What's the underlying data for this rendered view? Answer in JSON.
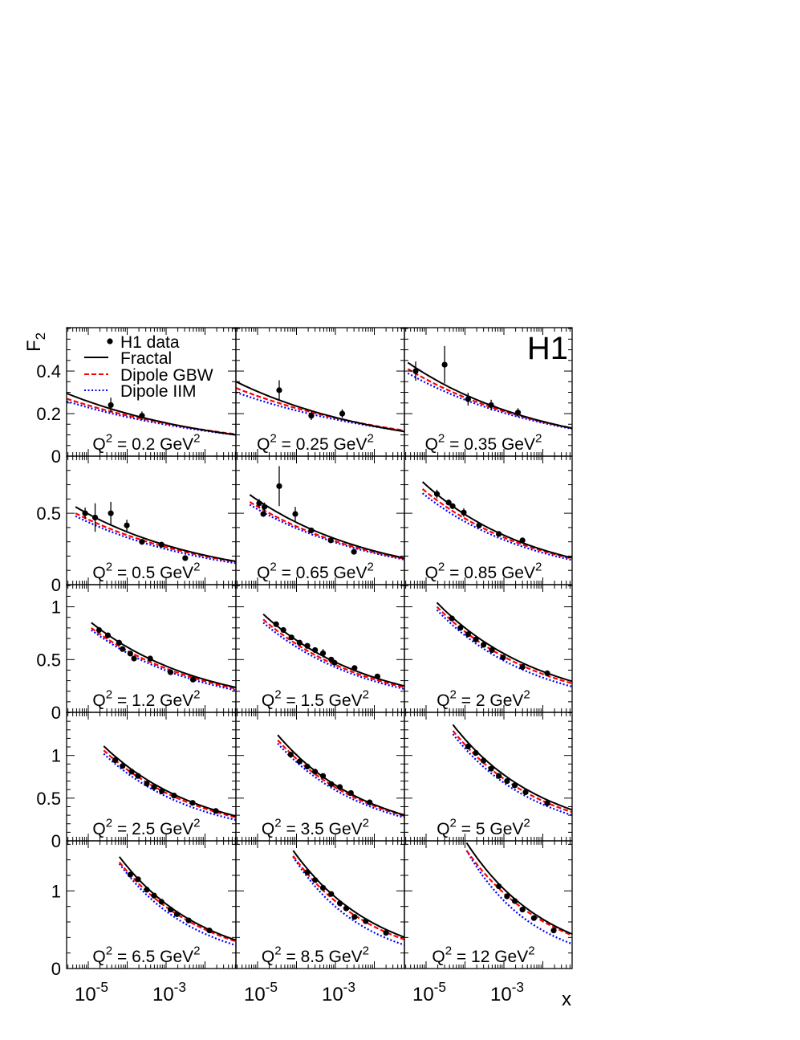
{
  "chart_data": {
    "type": "scatter",
    "experiment_label": "H1",
    "xlabel": "x",
    "ylabel": "F_2",
    "xscale": "log",
    "xlim": [
      2.8e-06,
      0.062
    ],
    "x_tick_labels": [
      "10^-5",
      "10^-3"
    ],
    "grid": false,
    "legend": {
      "placement": "top-left of first panel",
      "entries": [
        {
          "name": "H1 data",
          "style": "marker",
          "color": "#000000"
        },
        {
          "name": "Fractal",
          "style": "solid",
          "color": "#000000"
        },
        {
          "name": "Dipole GBW",
          "style": "dashed",
          "color": "#ff0000"
        },
        {
          "name": "Dipole IIM",
          "style": "dotted",
          "color": "#0000ff"
        }
      ]
    },
    "rows": [
      {
        "ylim": [
          0,
          0.604
        ],
        "y_ticks": [
          "0",
          "0.2",
          "0.4"
        ],
        "y_tick_values": [
          0,
          0.2,
          0.4
        ],
        "minor_step": 0.05
      },
      {
        "ylim": [
          0,
          0.9
        ],
        "y_ticks": [
          "0",
          "0.5"
        ],
        "y_tick_values": [
          0,
          0.5
        ],
        "minor_step": 0.1
      },
      {
        "ylim": [
          0,
          1.21
        ],
        "y_ticks": [
          "0",
          "0.5",
          "1"
        ],
        "y_tick_values": [
          0,
          0.5,
          1
        ],
        "minor_step": 0.1
      },
      {
        "ylim": [
          0,
          1.505
        ],
        "y_ticks": [
          "0",
          "0.5",
          "1"
        ],
        "y_tick_values": [
          0,
          0.5,
          1
        ],
        "minor_step": 0.1
      },
      {
        "ylim": [
          0,
          1.645
        ],
        "y_ticks": [
          "0",
          "1"
        ],
        "y_tick_values": [
          0,
          1
        ],
        "minor_step": 0.2
      }
    ],
    "panels": [
      {
        "label": "Q^{2} = 0.2 GeV^{2}",
        "data": [
          [
            3.8e-05,
            0.24,
            0.035
          ],
          [
            0.00024,
            0.19,
            0.02
          ]
        ],
        "fractal": [
          [
            2.8e-06,
            0.295
          ],
          [
            0.062,
            0.1
          ]
        ],
        "gbw": [
          [
            2.8e-06,
            0.27
          ],
          [
            0.062,
            0.103
          ]
        ],
        "iim": [
          [
            2.8e-06,
            0.258
          ],
          [
            0.062,
            0.1
          ]
        ]
      },
      {
        "label": "Q^{2} = 0.25 GeV^{2}",
        "data": [
          [
            3.6e-05,
            0.31,
            0.047
          ],
          [
            0.00024,
            0.19,
            0.02
          ],
          [
            0.0015,
            0.2,
            0.02
          ]
        ],
        "fractal": [
          [
            2.8e-06,
            0.35
          ],
          [
            0.062,
            0.115
          ]
        ],
        "gbw": [
          [
            2.8e-06,
            0.32
          ],
          [
            0.062,
            0.12
          ]
        ],
        "iim": [
          [
            2.8e-06,
            0.3
          ],
          [
            0.062,
            0.117
          ]
        ]
      },
      {
        "label": "Q^{2} = 0.35 GeV^{2}",
        "data": [
          [
            5.4e-06,
            0.4,
            0.045
          ],
          [
            3e-05,
            0.43,
            0.088
          ],
          [
            0.00012,
            0.268,
            0.03
          ],
          [
            0.00047,
            0.24,
            0.025
          ],
          [
            0.0023,
            0.205,
            0.02
          ]
        ],
        "fractal": [
          [
            3.4e-06,
            0.44
          ],
          [
            0.062,
            0.13
          ]
        ],
        "gbw": [
          [
            3.4e-06,
            0.41
          ],
          [
            0.062,
            0.13
          ]
        ],
        "iim": [
          [
            3.4e-06,
            0.39
          ],
          [
            0.062,
            0.127
          ]
        ]
      },
      {
        "label": "Q^{2} = 0.5 GeV^{2}",
        "data": [
          [
            8.3e-06,
            0.5,
            0.04
          ],
          [
            1.5e-05,
            0.47,
            0.1
          ],
          [
            3.8e-05,
            0.5,
            0.08
          ],
          [
            9.8e-05,
            0.415,
            0.04
          ],
          [
            0.00024,
            0.3,
            0.02
          ],
          [
            0.00076,
            0.28,
            0.02
          ],
          [
            0.0031,
            0.186,
            0.02
          ]
        ],
        "fractal": [
          [
            4.7e-06,
            0.545
          ],
          [
            0.062,
            0.163
          ]
        ],
        "gbw": [
          [
            4.7e-06,
            0.5
          ],
          [
            0.062,
            0.16
          ]
        ],
        "iim": [
          [
            4.7e-06,
            0.48
          ],
          [
            0.062,
            0.15
          ]
        ]
      },
      {
        "label": "Q^{2} = 0.65 GeV^{2}",
        "data": [
          [
            1.1e-05,
            0.57,
            0.03
          ],
          [
            1.4e-05,
            0.495,
            0.02
          ],
          [
            1.5e-05,
            0.545,
            0.03
          ],
          [
            3.6e-05,
            0.69,
            0.14
          ],
          [
            9.3e-05,
            0.495,
            0.05
          ],
          [
            0.00024,
            0.38,
            0.02
          ],
          [
            0.00076,
            0.31,
            0.015
          ],
          [
            0.003,
            0.23,
            0.01
          ]
        ],
        "fractal": [
          [
            6.3e-06,
            0.63
          ],
          [
            0.062,
            0.185
          ]
        ],
        "gbw": [
          [
            6.3e-06,
            0.58
          ],
          [
            0.062,
            0.18
          ]
        ],
        "iim": [
          [
            6.3e-06,
            0.56
          ],
          [
            0.062,
            0.175
          ]
        ]
      },
      {
        "label": "Q^{2} = 0.85 GeV^{2}",
        "data": [
          [
            1.9e-05,
            0.635,
            0.03
          ],
          [
            3.8e-05,
            0.575,
            0.02
          ],
          [
            4.8e-05,
            0.55,
            0.02
          ],
          [
            9.3e-05,
            0.505,
            0.03
          ],
          [
            0.00023,
            0.415,
            0.02
          ],
          [
            0.00074,
            0.355,
            0.015
          ],
          [
            0.003,
            0.31,
            0.01
          ]
        ],
        "fractal": [
          [
            8.1e-06,
            0.72
          ],
          [
            0.062,
            0.185
          ]
        ],
        "gbw": [
          [
            8.1e-06,
            0.67
          ],
          [
            0.062,
            0.18
          ]
        ],
        "iim": [
          [
            8.1e-06,
            0.64
          ],
          [
            0.062,
            0.17
          ]
        ]
      },
      {
        "label": "Q^{2} = 1.2 GeV^{2}",
        "data": [
          [
            1.9e-05,
            0.78,
            0.02
          ],
          [
            3.2e-05,
            0.73,
            0.02
          ],
          [
            6.2e-05,
            0.66,
            0.02
          ],
          [
            7.6e-05,
            0.6,
            0.02
          ],
          [
            0.00012,
            0.557,
            0.02
          ],
          [
            0.00015,
            0.51,
            0.02
          ],
          [
            0.00039,
            0.51,
            0.015
          ],
          [
            0.0013,
            0.38,
            0.015
          ],
          [
            0.0049,
            0.31,
            0.015
          ]
        ],
        "fractal": [
          [
            1.2e-05,
            0.85
          ],
          [
            0.062,
            0.236
          ]
        ],
        "gbw": [
          [
            1.2e-05,
            0.8
          ],
          [
            0.062,
            0.225
          ]
        ],
        "iim": [
          [
            1.2e-05,
            0.78
          ],
          [
            0.062,
            0.21
          ]
        ]
      },
      {
        "label": "Q^{2} = 1.5 GeV^{2}",
        "data": [
          [
            3e-05,
            0.835,
            0.02
          ],
          [
            4.6e-05,
            0.78,
            0.02
          ],
          [
            7.4e-05,
            0.71,
            0.02
          ],
          [
            0.00012,
            0.66,
            0.015
          ],
          [
            0.00019,
            0.63,
            0.015
          ],
          [
            0.0003,
            0.59,
            0.015
          ],
          [
            0.00048,
            0.56,
            0.04
          ],
          [
            0.00078,
            0.5,
            0.015
          ],
          [
            0.00095,
            0.47,
            0.02
          ],
          [
            0.0031,
            0.42,
            0.015
          ],
          [
            0.012,
            0.34,
            0.015
          ]
        ],
        "fractal": [
          [
            1.4e-05,
            0.93
          ],
          [
            0.062,
            0.248
          ]
        ],
        "gbw": [
          [
            1.4e-05,
            0.88
          ],
          [
            0.062,
            0.235
          ]
        ],
        "iim": [
          [
            1.4e-05,
            0.85
          ],
          [
            0.062,
            0.22
          ]
        ]
      },
      {
        "label": "Q^{2} = 2 GeV^{2}",
        "data": [
          [
            4.6e-05,
            0.89,
            0.02
          ],
          [
            7.6e-05,
            0.8,
            0.02
          ],
          [
            0.00012,
            0.74,
            0.015
          ],
          [
            0.00019,
            0.69,
            0.015
          ],
          [
            0.0003,
            0.64,
            0.015
          ],
          [
            0.00049,
            0.59,
            0.015
          ],
          [
            0.00095,
            0.52,
            0.015
          ],
          [
            0.003,
            0.43,
            0.015
          ],
          [
            0.013,
            0.37,
            0.015
          ]
        ],
        "fractal": [
          [
            1.9e-05,
            1.04
          ],
          [
            0.062,
            0.29
          ]
        ],
        "gbw": [
          [
            1.9e-05,
            1.0
          ],
          [
            0.062,
            0.27
          ]
        ],
        "iim": [
          [
            1.9e-05,
            0.97
          ],
          [
            0.062,
            0.24
          ]
        ]
      },
      {
        "label": "Q^{2} = 2.5 GeV^{2}",
        "data": [
          [
            4.9e-05,
            0.945,
            0.02
          ],
          [
            7.6e-05,
            0.876,
            0.02
          ],
          [
            0.00013,
            0.81,
            0.02
          ],
          [
            0.00019,
            0.76,
            0.015
          ],
          [
            0.00032,
            0.67,
            0.02
          ],
          [
            0.00049,
            0.63,
            0.015
          ],
          [
            0.00078,
            0.58,
            0.015
          ],
          [
            0.0016,
            0.53,
            0.015
          ],
          [
            0.0048,
            0.445,
            0.015
          ],
          [
            0.019,
            0.35,
            0.015
          ]
        ],
        "fractal": [
          [
            2.5e-05,
            1.11
          ],
          [
            0.062,
            0.29
          ]
        ],
        "gbw": [
          [
            2.5e-05,
            1.06
          ],
          [
            0.062,
            0.275
          ]
        ],
        "iim": [
          [
            2.5e-05,
            1.02
          ],
          [
            0.062,
            0.245
          ]
        ]
      },
      {
        "label": "Q^{2} = 3.5 GeV^{2}",
        "data": [
          [
            7.1e-05,
            1.01,
            0.02
          ],
          [
            0.00012,
            0.93,
            0.02
          ],
          [
            0.00019,
            0.87,
            0.015
          ],
          [
            0.0003,
            0.81,
            0.015
          ],
          [
            0.00048,
            0.76,
            0.015
          ],
          [
            0.00078,
            0.665,
            0.015
          ],
          [
            0.0013,
            0.63,
            0.015
          ],
          [
            0.0025,
            0.56,
            0.015
          ],
          [
            0.0076,
            0.45,
            0.015
          ]
        ],
        "fractal": [
          [
            3.3e-05,
            1.24
          ],
          [
            0.062,
            0.3
          ]
        ],
        "gbw": [
          [
            3.3e-05,
            1.18
          ],
          [
            0.062,
            0.29
          ]
        ],
        "iim": [
          [
            3.3e-05,
            1.14
          ],
          [
            0.062,
            0.27
          ]
        ]
      },
      {
        "label": "Q^{2} = 5 GeV^{2}",
        "data": [
          [
            0.00012,
            1.105,
            0.02
          ],
          [
            0.00019,
            1.03,
            0.02
          ],
          [
            0.0003,
            0.94,
            0.02
          ],
          [
            0.00047,
            0.845,
            0.015
          ],
          [
            0.00074,
            0.76,
            0.015
          ],
          [
            0.0012,
            0.7,
            0.015
          ],
          [
            0.0019,
            0.65,
            0.015
          ],
          [
            0.0036,
            0.57,
            0.015
          ],
          [
            0.013,
            0.44,
            0.015
          ]
        ],
        "fractal": [
          [
            4.9e-05,
            1.36
          ],
          [
            0.062,
            0.357
          ]
        ],
        "gbw": [
          [
            4.9e-05,
            1.29
          ],
          [
            0.062,
            0.33
          ]
        ],
        "iim": [
          [
            4.9e-05,
            1.25
          ],
          [
            0.062,
            0.295
          ]
        ]
      },
      {
        "label": "Q^{2} = 6.5 GeV^{2}",
        "data": [
          [
            0.00012,
            1.21,
            0.02
          ],
          [
            0.00019,
            1.15,
            0.02
          ],
          [
            0.00032,
            1.015,
            0.02
          ],
          [
            0.00049,
            0.94,
            0.02
          ],
          [
            0.00076,
            0.86,
            0.015
          ],
          [
            0.0013,
            0.76,
            0.015
          ],
          [
            0.0019,
            0.7,
            0.015
          ],
          [
            0.0038,
            0.62,
            0.015
          ],
          [
            0.013,
            0.49,
            0.015
          ]
        ],
        "fractal": [
          [
            6.3e-05,
            1.44
          ],
          [
            0.062,
            0.366
          ]
        ],
        "gbw": [
          [
            6.3e-05,
            1.37
          ],
          [
            0.062,
            0.35
          ]
        ],
        "iim": [
          [
            6.3e-05,
            1.35
          ],
          [
            0.062,
            0.3
          ]
        ]
      },
      {
        "label": "Q^{2} = 8.5 GeV^{2}",
        "data": [
          [
            0.00019,
            1.24,
            0.02
          ],
          [
            0.0003,
            1.14,
            0.02
          ],
          [
            0.00048,
            1.04,
            0.02
          ],
          [
            0.00078,
            0.96,
            0.02
          ],
          [
            0.0013,
            0.84,
            0.015
          ],
          [
            0.0019,
            0.775,
            0.015
          ],
          [
            0.0031,
            0.665,
            0.015
          ],
          [
            0.006,
            0.61,
            0.015
          ],
          [
            0.02,
            0.46,
            0.015
          ]
        ],
        "fractal": [
          [
            8.2e-05,
            1.52
          ],
          [
            0.062,
            0.4
          ]
        ],
        "gbw": [
          [
            8.2e-05,
            1.45
          ],
          [
            0.062,
            0.37
          ]
        ],
        "iim": [
          [
            8.2e-05,
            1.44
          ],
          [
            0.062,
            0.3
          ]
        ]
      },
      {
        "label": "Q^{2} = 12 GeV^{2}",
        "data": [
          [
            0.00074,
            1.06,
            0.02
          ],
          [
            0.0012,
            0.93,
            0.02
          ],
          [
            0.0019,
            0.87,
            0.02
          ],
          [
            0.003,
            0.76,
            0.015
          ],
          [
            0.0059,
            0.65,
            0.015
          ],
          [
            0.019,
            0.49,
            0.015
          ]
        ],
        "fractal": [
          [
            0.00011,
            1.62
          ],
          [
            0.062,
            0.435
          ]
        ],
        "gbw": [
          [
            0.00011,
            1.52
          ],
          [
            0.062,
            0.42
          ]
        ],
        "iim": [
          [
            0.00011,
            1.52
          ],
          [
            0.062,
            0.31
          ]
        ]
      }
    ]
  }
}
